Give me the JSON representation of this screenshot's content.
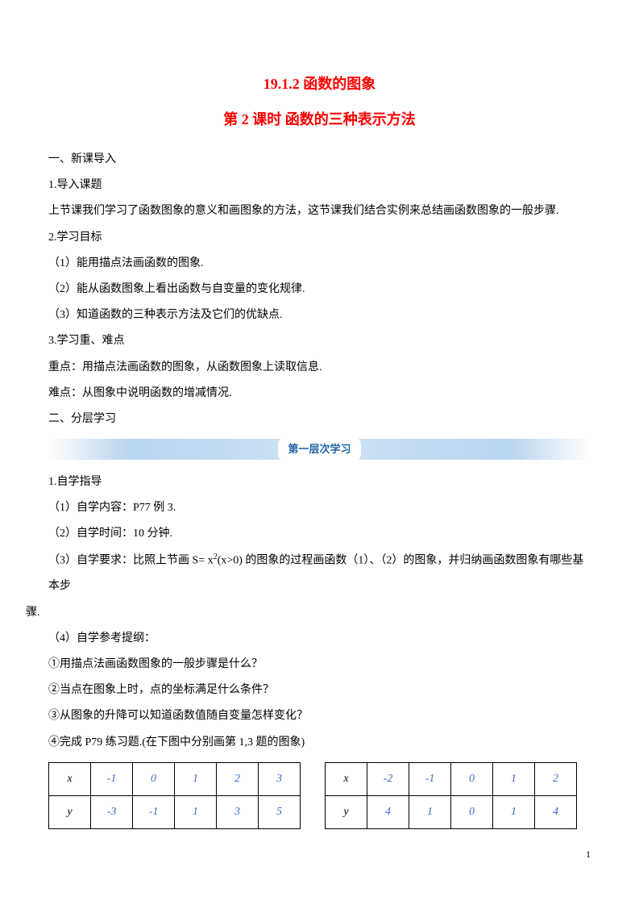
{
  "title_main": "19.1.2 函数的图象",
  "title_sub": "第 2 课时 函数的三种表示方法",
  "sec1": "一、新课导入",
  "p1_1": "1.导入课题",
  "p1_2": "上节课我们学习了函数图象的意义和画图象的方法，这节课我们结合实例来总结画函数图象的一般步骤.",
  "p2_1": "2.学习目标",
  "p2_2": "（1）能用描点法画函数的图象.",
  "p2_3": "（2）能从函数图象上看出函数与自变量的变化规律.",
  "p2_4": "（3）知道函数的三种表示方法及它们的优缺点.",
  "p3_1": "3.学习重、难点",
  "p3_2": "重点：用描点法画函数的图象，从函数图象上读取信息.",
  "p3_3": "难点：从图象中说明函数的增减情况.",
  "sec2": "二、分层学习",
  "banner": "第一层次学习",
  "p4_1": "1.自学指导",
  "p4_2": "（1）自学内容：P77 例 3.",
  "p4_3": "（2）自学时间：10 分钟.",
  "p4_4a": "（3）自学要求：比照上节画 S= x",
  "p4_4b": "(x>0) 的图象的过程画函数（1）、（2）的图象，并归纳画函数图象有哪些基本步",
  "p4_4c": "骤.",
  "p4_5": "（4）自学参考提纲：",
  "p4_6": "①用描点法画函数图象的一般步骤是什么？",
  "p4_7": "②当点在图象上时，点的坐标满足什么条件？",
  "p4_8": "③从图象的升降可以知道函数值随自变量怎样变化？",
  "p4_9": "④完成 P79 练习题.(在下图中分别画第 1,3 题的图象)",
  "table1": {
    "headers": [
      "x",
      "-1",
      "0",
      "1",
      "2",
      "3"
    ],
    "row": [
      "y",
      "-3",
      "-1",
      "1",
      "3",
      "5"
    ]
  },
  "table2": {
    "headers": [
      "x",
      "-2",
      "-1",
      "0",
      "1",
      "2"
    ],
    "row": [
      "y",
      "4",
      "1",
      "0",
      "1",
      "4"
    ]
  },
  "page_number": "1"
}
